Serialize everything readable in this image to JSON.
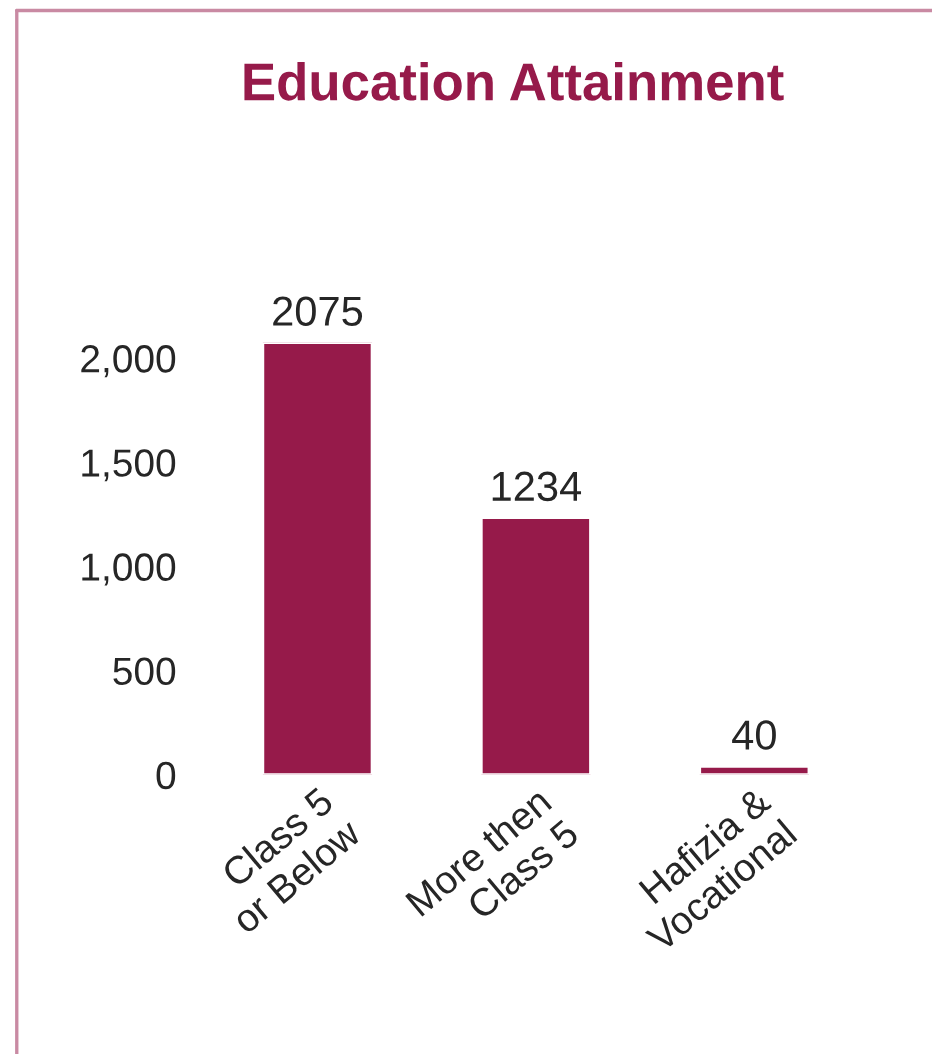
{
  "chart_data": {
    "type": "bar",
    "title": "Education Attainment",
    "categories": [
      "Class 5\nor Below",
      "More then\nClass 5",
      "Hafizia &\nVocational"
    ],
    "values": [
      2075,
      1234,
      40
    ],
    "color": "#961a4a",
    "ylim": [
      0,
      2075
    ],
    "yticks": [
      0,
      500,
      {
        "value": 1000,
        "label": "1,000"
      },
      {
        "value": 1500,
        "label": "1,500"
      },
      {
        "value": 2000,
        "label": "2,000"
      }
    ],
    "data_labels": true,
    "grid": false,
    "legend": false
  }
}
